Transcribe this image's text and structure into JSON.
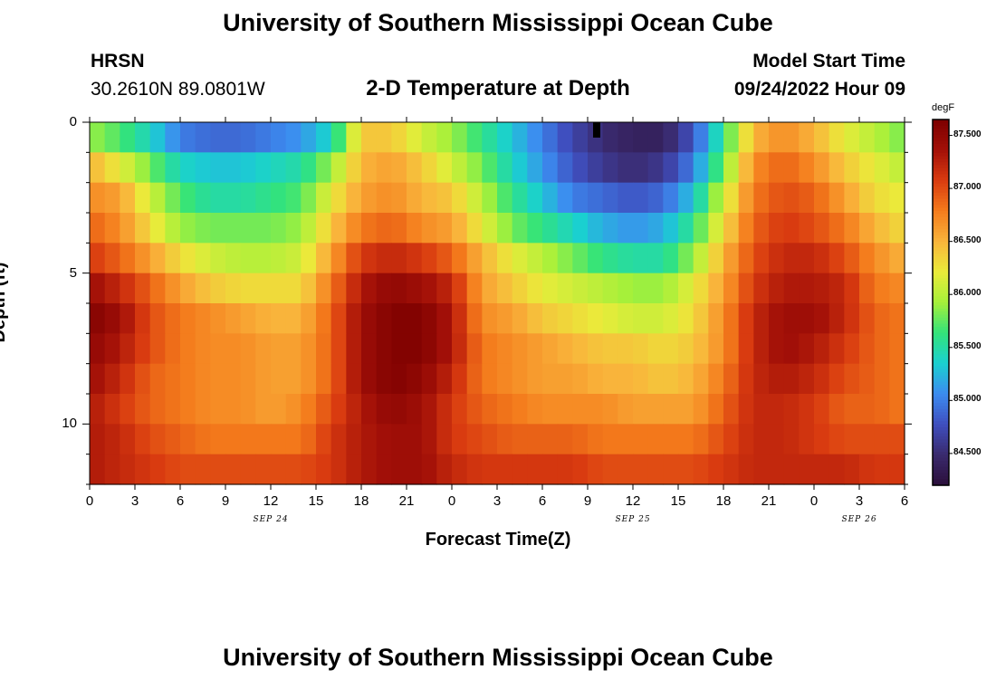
{
  "header": {
    "title": "University of Southern Mississippi Ocean Cube",
    "station": "HRSN",
    "coords": "30.2610N  89.0801W",
    "chart_title": "2-D Temperature at Depth",
    "model_label": "Model Start Time",
    "model_time": "09/24/2022 Hour 09",
    "footer_title": "University of Southern Mississippi Ocean Cube"
  },
  "chart_data": {
    "type": "heatmap",
    "title": "2-D Temperature at Depth",
    "xlabel": "Forecast Time(Z)",
    "ylabel": "Depth (ft)",
    "x_ticks": [
      "0",
      "3",
      "6",
      "9",
      "12",
      "15",
      "18",
      "21",
      "0",
      "3",
      "6",
      "9",
      "12",
      "15",
      "18",
      "21",
      "0",
      "3",
      "6"
    ],
    "date_labels": [
      "SEP 24",
      "SEP 25",
      "SEP 26"
    ],
    "x_range_hours": [
      0,
      54
    ],
    "y_ticks": [
      "0",
      "5",
      "10"
    ],
    "y_range_ft": [
      0,
      12
    ],
    "colorbar": {
      "unit": "degF",
      "range": [
        84.2,
        87.65
      ],
      "ticks": [
        "87.500",
        "87.000",
        "86.500",
        "86.000",
        "85.500",
        "85.000",
        "84.500"
      ],
      "tick_values": [
        87.5,
        87.0,
        86.5,
        86.0,
        85.5,
        85.0,
        84.5
      ],
      "colors": [
        "#2b0f3a",
        "#3a2a6e",
        "#3f4fbf",
        "#3c8cf0",
        "#1ad0d0",
        "#33e37a",
        "#a6f03a",
        "#eaeb3a",
        "#f9b43b",
        "#f47b1c",
        "#d93b10",
        "#a31008",
        "#7c0000"
      ]
    },
    "depth_layers_ft": [
      0.5,
      1.5,
      2.5,
      3.5,
      4.5,
      5.5,
      6.5,
      7.5,
      8.5,
      9.5,
      10.5,
      11.5
    ],
    "time_hours": [
      0,
      2,
      4,
      6,
      8,
      10,
      12,
      14,
      16,
      18,
      20,
      22,
      24,
      26,
      28,
      30,
      32,
      34,
      36,
      38,
      40,
      42,
      44,
      46,
      48,
      50,
      52,
      54
    ],
    "values_degF": [
      [
        85.9,
        85.7,
        85.4,
        85.0,
        84.9,
        84.9,
        85.0,
        85.1,
        85.4,
        86.4,
        86.4,
        86.1,
        85.9,
        85.6,
        85.3,
        85.0,
        84.7,
        84.5,
        84.4,
        84.4,
        84.8,
        85.6,
        86.5,
        86.7,
        86.5,
        86.2,
        86.0,
        85.8
      ],
      [
        86.5,
        86.2,
        85.8,
        85.4,
        85.3,
        85.3,
        85.4,
        85.5,
        85.9,
        86.5,
        86.6,
        86.4,
        86.1,
        85.8,
        85.4,
        85.1,
        84.8,
        84.6,
        84.5,
        84.6,
        85.0,
        85.8,
        86.7,
        86.9,
        86.7,
        86.4,
        86.2,
        86.0
      ],
      [
        86.7,
        86.6,
        86.1,
        85.7,
        85.5,
        85.5,
        85.6,
        85.7,
        86.2,
        86.6,
        86.7,
        86.5,
        86.4,
        86.0,
        85.6,
        85.3,
        85.0,
        84.9,
        84.8,
        84.9,
        85.3,
        86.1,
        86.8,
        87.0,
        86.9,
        86.6,
        86.3,
        86.2
      ],
      [
        86.9,
        86.7,
        86.3,
        85.9,
        85.8,
        85.8,
        85.8,
        85.9,
        86.4,
        86.8,
        86.9,
        86.7,
        86.6,
        86.2,
        85.8,
        85.6,
        85.4,
        85.2,
        85.1,
        85.2,
        85.6,
        86.3,
        86.9,
        87.1,
        87.0,
        86.8,
        86.5,
        86.3
      ],
      [
        87.1,
        86.9,
        86.6,
        86.3,
        86.1,
        86.0,
        86.0,
        86.1,
        86.6,
        87.1,
        87.2,
        87.1,
        86.9,
        86.5,
        86.2,
        86.0,
        85.8,
        85.6,
        85.5,
        85.5,
        85.9,
        86.5,
        87.0,
        87.2,
        87.2,
        87.0,
        86.7,
        86.5
      ],
      [
        87.4,
        87.2,
        86.9,
        86.6,
        86.4,
        86.3,
        86.3,
        86.3,
        86.8,
        87.3,
        87.5,
        87.4,
        87.2,
        86.6,
        86.4,
        86.2,
        86.1,
        86.0,
        85.9,
        85.9,
        86.2,
        86.6,
        87.1,
        87.3,
        87.3,
        87.2,
        86.8,
        86.7
      ],
      [
        87.6,
        87.4,
        87.0,
        86.8,
        86.7,
        86.6,
        86.5,
        86.5,
        86.9,
        87.4,
        87.6,
        87.6,
        87.3,
        86.7,
        86.6,
        86.4,
        86.3,
        86.2,
        86.1,
        86.1,
        86.3,
        86.7,
        87.2,
        87.4,
        87.4,
        87.2,
        86.9,
        86.8
      ],
      [
        87.5,
        87.3,
        87.0,
        86.8,
        86.7,
        86.7,
        86.6,
        86.6,
        86.9,
        87.4,
        87.6,
        87.6,
        87.3,
        86.8,
        86.7,
        86.6,
        86.5,
        86.4,
        86.4,
        86.3,
        86.4,
        86.7,
        87.2,
        87.4,
        87.3,
        87.1,
        86.9,
        86.8
      ],
      [
        87.4,
        87.2,
        86.9,
        86.8,
        86.7,
        86.7,
        86.6,
        86.6,
        86.9,
        87.4,
        87.6,
        87.5,
        87.2,
        86.8,
        86.7,
        86.6,
        86.6,
        86.5,
        86.5,
        86.4,
        86.5,
        86.8,
        87.2,
        87.3,
        87.2,
        87.0,
        86.9,
        86.8
      ],
      [
        87.3,
        87.1,
        86.9,
        86.8,
        86.7,
        86.7,
        86.6,
        86.7,
        87.0,
        87.3,
        87.5,
        87.4,
        87.1,
        86.9,
        86.8,
        86.7,
        86.7,
        86.7,
        86.6,
        86.6,
        86.6,
        86.9,
        87.2,
        87.2,
        87.1,
        86.9,
        86.9,
        86.8
      ],
      [
        87.3,
        87.2,
        87.0,
        86.9,
        86.8,
        86.8,
        86.8,
        86.8,
        87.1,
        87.3,
        87.4,
        87.4,
        87.1,
        87.0,
        86.9,
        86.9,
        86.9,
        86.8,
        86.8,
        86.8,
        86.8,
        87.0,
        87.2,
        87.2,
        87.1,
        87.0,
        87.0,
        87.0
      ],
      [
        87.3,
        87.2,
        87.1,
        87.0,
        87.0,
        87.0,
        87.0,
        87.0,
        87.1,
        87.3,
        87.4,
        87.4,
        87.2,
        87.1,
        87.1,
        87.1,
        87.1,
        87.0,
        87.0,
        87.0,
        87.0,
        87.1,
        87.2,
        87.2,
        87.2,
        87.2,
        87.1,
        87.1
      ]
    ],
    "marker": {
      "time_hour": 33.6,
      "depth_ft": 0.25
    },
    "grid": false
  }
}
